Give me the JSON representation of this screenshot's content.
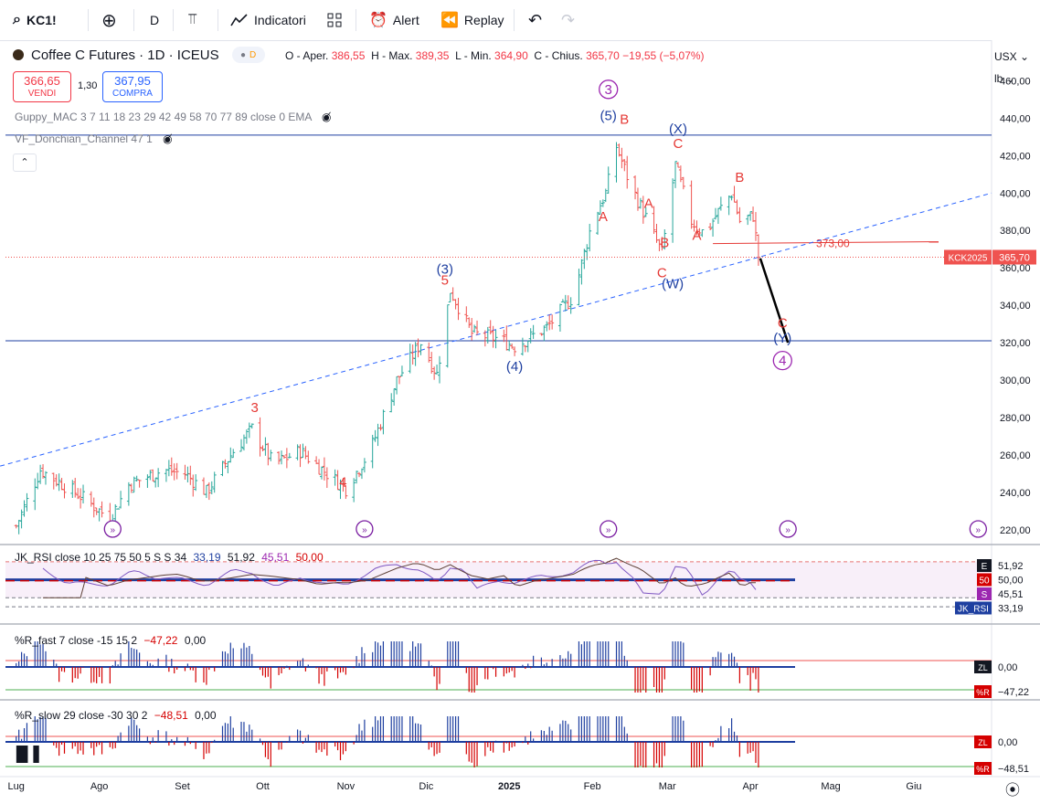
{
  "toolbar": {
    "symbol": "KC1!",
    "interval": "D",
    "indicators_label": "Indicatori",
    "alert_label": "Alert",
    "replay_label": "Replay",
    "icons": [
      "search-icon",
      "add-symbol-icon",
      "compare-icon",
      "indicators-icon",
      "layouts-icon",
      "alert-clock-icon",
      "replay-icon",
      "undo-icon",
      "redo-icon"
    ]
  },
  "header": {
    "title": "Coffee C Futures · 1D · ICEUS",
    "source_badge": "D",
    "ohlc": {
      "open_label": "O - Aper.",
      "open": "386,55",
      "high_label": "H - Max.",
      "high": "389,35",
      "low_label": "L - Min.",
      "low": "364,90",
      "close_label": "C - Chius.",
      "close": "365,70",
      "change": "−19,55 (−5,07%)"
    },
    "sell": {
      "price": "366,65",
      "label": "VENDI"
    },
    "spread": "1,30",
    "buy": {
      "price": "367,95",
      "label": "COMPRA"
    }
  },
  "indicator_legends": {
    "guppy": "Guppy_MAC 3 7 11 18 23 29 42 49 58 70 77 89 close 0 EMA",
    "donchian": "VF_Donchian_Channel 47 1",
    "rsi": {
      "name": "JK_RSI close 10 25 75 50 5 S S 34",
      "v1": "33,19",
      "v2": "51,92",
      "v3": "45,51",
      "v4": "50,00"
    },
    "r_fast": {
      "name": "%R_fast 7 close -15 15 2",
      "v1": "−47,22",
      "v2": "0,00"
    },
    "r_slow": {
      "name": "%R_slow 29 close -30 30 2",
      "v1": "−48,51",
      "v2": "0,00"
    }
  },
  "axis": {
    "currency": "USX",
    "unit": "lb",
    "price_ticks": [
      "460,00",
      "440,00",
      "420,00",
      "400,00",
      "380,00",
      "360,00",
      "340,00",
      "320,00",
      "300,00",
      "280,00",
      "260,00",
      "240,00",
      "220,00"
    ],
    "months": [
      "Lug",
      "Ago",
      "Set",
      "Ott",
      "Nov",
      "Dic",
      "2025",
      "Feb",
      "Mar",
      "Apr",
      "Mag",
      "Giu"
    ],
    "last_price_label": "KCK2025",
    "last_price": "365,70",
    "level_label": "373,00",
    "rsi_tags": [
      {
        "tag": "E",
        "value": "51,92",
        "color": "#131722"
      },
      {
        "tag": "50",
        "value": "50,00",
        "color": "#d50000"
      },
      {
        "tag": "S",
        "value": "45,51",
        "color": "#9c27b0"
      },
      {
        "tag": "JK_RSI",
        "value": "33,19",
        "color": "#1e3fa0"
      }
    ],
    "rfast_tags": [
      {
        "tag": "ZL",
        "value": "0,00",
        "color": "#131722"
      },
      {
        "tag": "%R",
        "value": "−47,22",
        "color": "#d50000"
      }
    ],
    "rslow_tags": [
      {
        "tag": "ZL",
        "value": "0,00",
        "color": "#d50000"
      },
      {
        "tag": "%R",
        "value": "−48,51",
        "color": "#d50000"
      }
    ]
  },
  "wave_labels": [
    {
      "text": "3",
      "color": "#e53935",
      "circled": false
    },
    {
      "text": "4",
      "color": "#e53935",
      "circled": false
    },
    {
      "text": "(3)",
      "color": "#1e3fa0",
      "circled": false
    },
    {
      "text": "5",
      "color": "#e53935",
      "circled": false
    },
    {
      "text": "(4)",
      "color": "#1e3fa0",
      "circled": false
    },
    {
      "text": "3",
      "color": "#9c27b0",
      "circled": true
    },
    {
      "text": "(5)",
      "color": "#1e3fa0",
      "circled": false
    },
    {
      "text": "B",
      "color": "#e53935",
      "circled": false
    },
    {
      "text": "A",
      "color": "#e53935",
      "circled": false
    },
    {
      "text": "A",
      "color": "#e53935",
      "circled": false
    },
    {
      "text": "B",
      "color": "#e53935",
      "circled": false
    },
    {
      "text": "C",
      "color": "#e53935",
      "circled": false
    },
    {
      "text": "(W)",
      "color": "#1e3fa0",
      "circled": false
    },
    {
      "text": "(X)",
      "color": "#1e3fa0",
      "circled": false
    },
    {
      "text": "C",
      "color": "#e53935",
      "circled": false
    },
    {
      "text": "A",
      "color": "#e53935",
      "circled": false
    },
    {
      "text": "B",
      "color": "#e53935",
      "circled": false
    },
    {
      "text": "C",
      "color": "#e53935",
      "circled": false
    },
    {
      "text": "(Y)",
      "color": "#1e3fa0",
      "circled": false
    },
    {
      "text": "4",
      "color": "#9c27b0",
      "circled": true
    }
  ],
  "chart_data": {
    "type": "ohlc",
    "title": "Coffee C Futures · 1D · ICEUS",
    "ylim": [
      215,
      470
    ],
    "y_ticks": [
      460,
      440,
      420,
      400,
      380,
      360,
      340,
      320,
      300,
      280,
      260,
      240,
      220
    ],
    "x_months": [
      "Lug",
      "Ago",
      "Set",
      "Ott",
      "Nov",
      "Dic",
      "2025",
      "Feb",
      "Mar",
      "Apr",
      "Mag",
      "Giu"
    ],
    "close_path": [
      {
        "x": "2024-07-01",
        "y": 222
      },
      {
        "x": "2024-07-10",
        "y": 252
      },
      {
        "x": "2024-07-25",
        "y": 238
      },
      {
        "x": "2024-08-05",
        "y": 226
      },
      {
        "x": "2024-08-12",
        "y": 244
      },
      {
        "x": "2024-08-25",
        "y": 252
      },
      {
        "x": "2024-09-02",
        "y": 250
      },
      {
        "x": "2024-09-10",
        "y": 240
      },
      {
        "x": "2024-09-20",
        "y": 262
      },
      {
        "x": "2024-09-27",
        "y": 274
      },
      {
        "x": "2024-10-05",
        "y": 255
      },
      {
        "x": "2024-10-15",
        "y": 262
      },
      {
        "x": "2024-10-25",
        "y": 250
      },
      {
        "x": "2024-11-01",
        "y": 242
      },
      {
        "x": "2024-11-10",
        "y": 262
      },
      {
        "x": "2024-11-20",
        "y": 300
      },
      {
        "x": "2024-11-29",
        "y": 320
      },
      {
        "x": "2024-12-05",
        "y": 303
      },
      {
        "x": "2024-12-10",
        "y": 348
      },
      {
        "x": "2024-12-18",
        "y": 325
      },
      {
        "x": "2024-12-28",
        "y": 322
      },
      {
        "x": "2025-01-03",
        "y": 318
      },
      {
        "x": "2025-01-15",
        "y": 328
      },
      {
        "x": "2025-01-25",
        "y": 345
      },
      {
        "x": "2025-02-01",
        "y": 385
      },
      {
        "x": "2025-02-06",
        "y": 400
      },
      {
        "x": "2025-02-10",
        "y": 425
      },
      {
        "x": "2025-02-15",
        "y": 405
      },
      {
        "x": "2025-02-20",
        "y": 390
      },
      {
        "x": "2025-02-27",
        "y": 368
      },
      {
        "x": "2025-03-04",
        "y": 415
      },
      {
        "x": "2025-03-10",
        "y": 385
      },
      {
        "x": "2025-03-15",
        "y": 378
      },
      {
        "x": "2025-03-20",
        "y": 390
      },
      {
        "x": "2025-03-25",
        "y": 400
      },
      {
        "x": "2025-03-28",
        "y": 385
      },
      {
        "x": "2025-04-02",
        "y": 388
      },
      {
        "x": "2025-04-04",
        "y": 365.7
      }
    ],
    "horizontal_levels": [
      {
        "y": 431
      },
      {
        "y": 321
      },
      {
        "y": 373
      }
    ],
    "trendline": {
      "from": {
        "x": "2024-06-25",
        "y": 254
      },
      "to": {
        "x": "2025-06-30",
        "y": 400
      }
    },
    "projection": {
      "from": {
        "x": "2025-04-04",
        "y": 370
      },
      "to": {
        "x": "2025-04-15",
        "y": 320
      }
    },
    "last_price": 365.7,
    "indicators": {
      "jk_rsi": {
        "rsi": 33.19,
        "e": 51.92,
        "s": 45.51,
        "level": 50.0
      },
      "r_fast": {
        "value": -47.22,
        "zero": 0.0
      },
      "r_slow": {
        "value": -48.51,
        "zero": 0.0
      }
    }
  },
  "colors": {
    "up": "#26a69a",
    "down": "#ef5350",
    "blue": "#1e3fa0",
    "red": "#e53935",
    "purple": "#9c27b0",
    "grid": "#e0e3eb",
    "text": "#131722"
  }
}
